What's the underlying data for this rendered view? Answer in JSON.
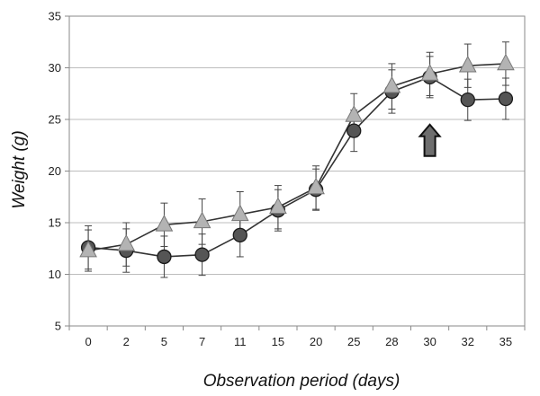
{
  "chart_data": {
    "type": "line",
    "title": "",
    "xlabel": "Observation period (days)",
    "ylabel": "Weight (g)",
    "categories": [
      "0",
      "2",
      "5",
      "7",
      "11",
      "15",
      "20",
      "25",
      "28",
      "30",
      "32",
      "35"
    ],
    "ylim": [
      5,
      35
    ],
    "yticks": [
      5,
      10,
      15,
      20,
      25,
      30,
      35
    ],
    "grid": true,
    "legend": "none",
    "series": [
      {
        "marker": "triangle",
        "color": "#b3b3b3",
        "values": [
          12.3,
          12.9,
          14.8,
          15.1,
          15.8,
          16.5,
          18.4,
          25.4,
          28.2,
          29.4,
          30.2,
          30.4
        ],
        "errors": [
          2.0,
          2.1,
          2.1,
          2.2,
          2.2,
          2.1,
          2.1,
          2.1,
          2.2,
          2.1,
          2.1,
          2.1
        ]
      },
      {
        "marker": "circle",
        "color": "#555555",
        "values": [
          12.6,
          12.3,
          11.7,
          11.9,
          13.8,
          16.2,
          18.2,
          23.9,
          27.7,
          29.1,
          26.9,
          27.0
        ],
        "errors": [
          2.1,
          2.1,
          2.0,
          2.0,
          2.1,
          2.0,
          2.0,
          2.0,
          2.1,
          2.0,
          2.0,
          2.0
        ]
      }
    ],
    "annotations": [
      {
        "type": "arrow-up",
        "category": "30",
        "y": 24.5,
        "color": "#6e6e6e"
      }
    ]
  }
}
